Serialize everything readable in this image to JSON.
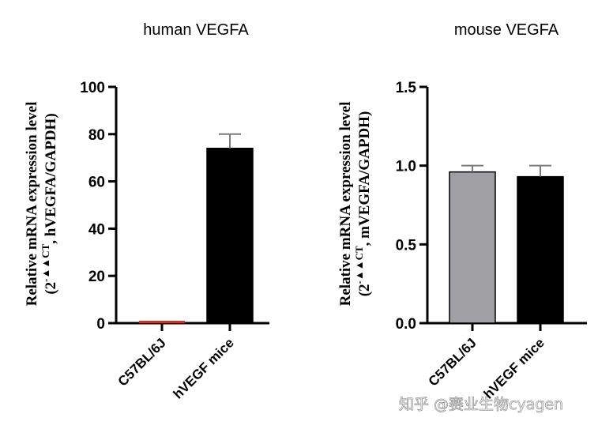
{
  "chart_data": [
    {
      "type": "bar",
      "title": "human VEGFA",
      "xlabel": "",
      "ylabel_line1": "Relative mRNA expression level",
      "ylabel_line2_prefix": "(2",
      "ylabel_line2_sup": "-▲▲CT",
      "ylabel_line2_suffix": ", hVEGFA/GAPDH)",
      "ylim": [
        0,
        100
      ],
      "yticks": [
        0,
        20,
        40,
        60,
        80,
        100
      ],
      "ytick_labels": [
        "0",
        "20",
        "40",
        "60",
        "80",
        "100"
      ],
      "grid": false,
      "categories": [
        "C57BL/6J",
        "hVEGF mice"
      ],
      "values": [
        1,
        74
      ],
      "error_upper": [
        1,
        80
      ],
      "colors": [
        "#c0392b",
        "#000000"
      ]
    },
    {
      "type": "bar",
      "title": "mouse VEGFA",
      "xlabel": "",
      "ylabel_line1": "Relative mRNA expression level",
      "ylabel_line2_prefix": "(2",
      "ylabel_line2_sup": "-▲▲CT",
      "ylabel_line2_suffix": ", mVEGFA/GAPDH)",
      "ylim": [
        0,
        1.5
      ],
      "yticks": [
        0,
        0.5,
        1.0,
        1.5
      ],
      "ytick_labels": [
        "0.0",
        "0.5",
        "1.0",
        "1.5"
      ],
      "grid": false,
      "categories": [
        "C57BL/6J",
        "hVEGF mice"
      ],
      "values": [
        0.96,
        0.93
      ],
      "error_upper": [
        1.0,
        1.0
      ],
      "colors": [
        "#a0a0a4",
        "#000000"
      ]
    }
  ],
  "watermark": "知乎 @赛业生物cyagen"
}
